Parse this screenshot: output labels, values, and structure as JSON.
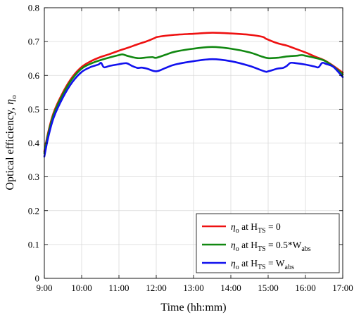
{
  "chart_data": {
    "type": "line",
    "title": "",
    "xlabel": "Time (hh:mm)",
    "ylabel": {
      "text": "Optical efficiency, ",
      "symbol": "η",
      "subscript": "o"
    },
    "xlim": [
      9.0,
      17.0
    ],
    "ylim": [
      0.0,
      0.8
    ],
    "xticks": [
      {
        "value": 9,
        "label": "9:00"
      },
      {
        "value": 10,
        "label": "10:00"
      },
      {
        "value": 11,
        "label": "11:00"
      },
      {
        "value": 12,
        "label": "12:00"
      },
      {
        "value": 13,
        "label": "13:00"
      },
      {
        "value": 14,
        "label": "14:00"
      },
      {
        "value": 15,
        "label": "15:00"
      },
      {
        "value": 16,
        "label": "16:00"
      },
      {
        "value": 17,
        "label": "17:00"
      }
    ],
    "yticks": [
      {
        "value": 0.0,
        "label": "0"
      },
      {
        "value": 0.1,
        "label": "0.1"
      },
      {
        "value": 0.2,
        "label": "0.2"
      },
      {
        "value": 0.3,
        "label": "0.3"
      },
      {
        "value": 0.4,
        "label": "0.4"
      },
      {
        "value": 0.5,
        "label": "0.5"
      },
      {
        "value": 0.6,
        "label": "0.6"
      },
      {
        "value": 0.7,
        "label": "0.7"
      },
      {
        "value": 0.8,
        "label": "0.8"
      }
    ],
    "grid": true,
    "legend_position": "bottom-right",
    "series": [
      {
        "name": "η_o at H_TS = 0",
        "legend_parts": {
          "eta": "η",
          "eta_sub": "o",
          "mid": " at H",
          "h_sub": "TS",
          "rest": " = 0",
          "rest_sub": ""
        },
        "color": "#ee1111",
        "x": [
          9.0,
          9.1,
          9.25,
          9.5,
          9.75,
          10.0,
          10.25,
          10.5,
          10.75,
          11.0,
          11.25,
          11.5,
          11.75,
          11.95,
          12.05,
          12.5,
          13.0,
          13.5,
          14.0,
          14.5,
          14.85,
          14.95,
          15.25,
          15.5,
          15.75,
          16.0,
          16.25,
          16.5,
          16.75,
          17.0
        ],
        "y": [
          0.375,
          0.43,
          0.49,
          0.55,
          0.595,
          0.625,
          0.642,
          0.654,
          0.663,
          0.673,
          0.682,
          0.692,
          0.701,
          0.71,
          0.714,
          0.72,
          0.723,
          0.726,
          0.724,
          0.72,
          0.714,
          0.708,
          0.695,
          0.688,
          0.678,
          0.668,
          0.656,
          0.645,
          0.628,
          0.608
        ]
      },
      {
        "name": "η_o at H_TS = 0.5*W_abs",
        "legend_parts": {
          "eta": "η",
          "eta_sub": "o",
          "mid": " at H",
          "h_sub": "TS",
          "rest": " = 0.5*W",
          "rest_sub": "abs"
        },
        "color": "#118811",
        "x": [
          9.0,
          9.1,
          9.25,
          9.5,
          9.75,
          10.0,
          10.25,
          10.5,
          10.75,
          11.0,
          11.1,
          11.25,
          11.5,
          11.75,
          11.9,
          12.0,
          12.25,
          12.5,
          13.0,
          13.5,
          14.0,
          14.5,
          14.85,
          15.0,
          15.25,
          15.5,
          15.75,
          15.9,
          16.0,
          16.25,
          16.5,
          16.75,
          17.0
        ],
        "y": [
          0.37,
          0.425,
          0.485,
          0.545,
          0.59,
          0.62,
          0.635,
          0.645,
          0.653,
          0.66,
          0.662,
          0.657,
          0.651,
          0.653,
          0.654,
          0.652,
          0.661,
          0.67,
          0.679,
          0.684,
          0.679,
          0.668,
          0.655,
          0.651,
          0.652,
          0.656,
          0.658,
          0.66,
          0.658,
          0.652,
          0.644,
          0.626,
          0.603
        ]
      },
      {
        "name": "η_o at H_TS = W_abs",
        "legend_parts": {
          "eta": "η",
          "eta_sub": "o",
          "mid": " at H",
          "h_sub": "TS",
          "rest": " = W",
          "rest_sub": "abs"
        },
        "color": "#1111ee",
        "x": [
          9.0,
          9.1,
          9.25,
          9.5,
          9.75,
          10.0,
          10.25,
          10.45,
          10.52,
          10.6,
          10.75,
          11.0,
          11.2,
          11.35,
          11.5,
          11.6,
          11.75,
          12.0,
          12.25,
          12.5,
          13.0,
          13.5,
          14.0,
          14.5,
          14.9,
          15.0,
          15.25,
          15.4,
          15.5,
          15.6,
          15.75,
          16.0,
          16.25,
          16.35,
          16.45,
          16.55,
          16.75,
          17.0
        ],
        "y": [
          0.36,
          0.415,
          0.475,
          0.535,
          0.58,
          0.61,
          0.625,
          0.632,
          0.637,
          0.624,
          0.628,
          0.633,
          0.636,
          0.628,
          0.622,
          0.623,
          0.62,
          0.612,
          0.622,
          0.632,
          0.642,
          0.648,
          0.642,
          0.628,
          0.612,
          0.612,
          0.62,
          0.622,
          0.628,
          0.637,
          0.636,
          0.632,
          0.626,
          0.624,
          0.637,
          0.634,
          0.625,
          0.595
        ]
      }
    ]
  }
}
